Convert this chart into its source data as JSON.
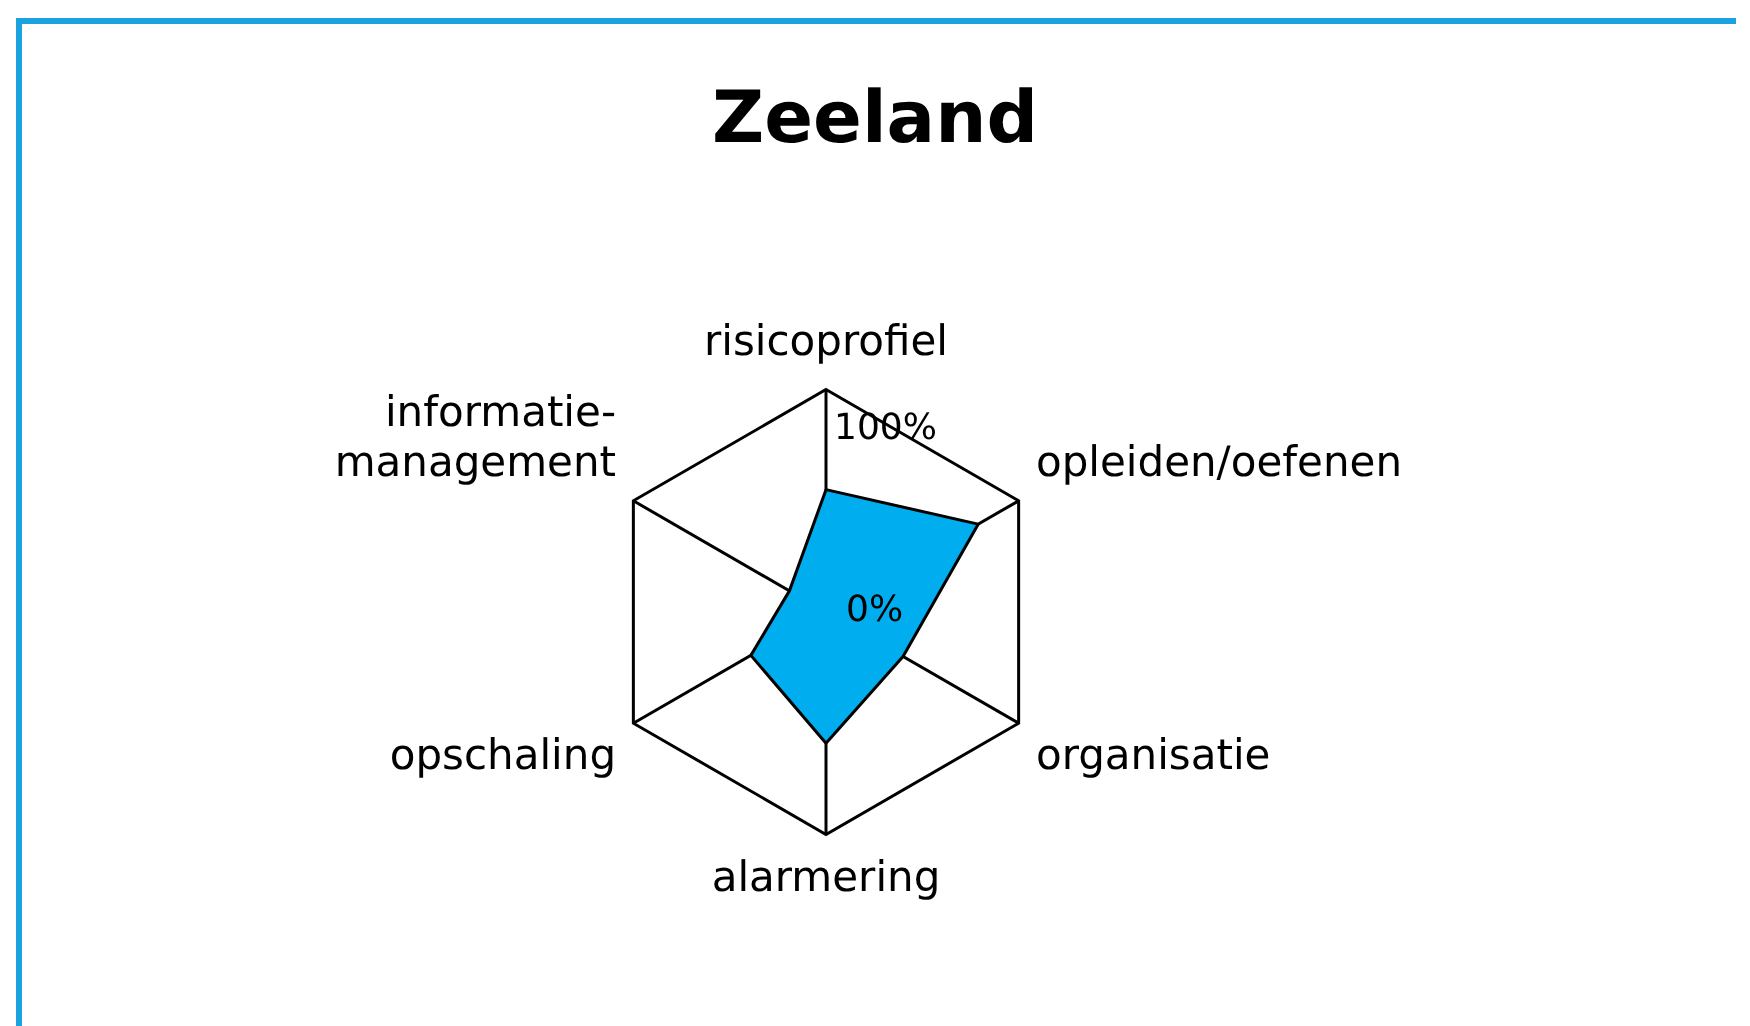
{
  "chart_data": {
    "type": "radar",
    "title": "Zeeland",
    "categories": [
      "risicoprofiel",
      "opleiden/oefenen",
      "organisatie",
      "alarmering",
      "opschaling",
      "informatie-management"
    ],
    "series": [
      {
        "color": "#00aeef",
        "values": [
          55,
          79,
          40,
          59,
          39,
          19
        ]
      }
    ],
    "ylim": [
      0,
      100
    ],
    "yticks": [
      {
        "value": 0,
        "label": "0%"
      },
      {
        "value": 100,
        "label": "100%"
      }
    ],
    "grid": true,
    "legend": false,
    "marker": "none"
  }
}
